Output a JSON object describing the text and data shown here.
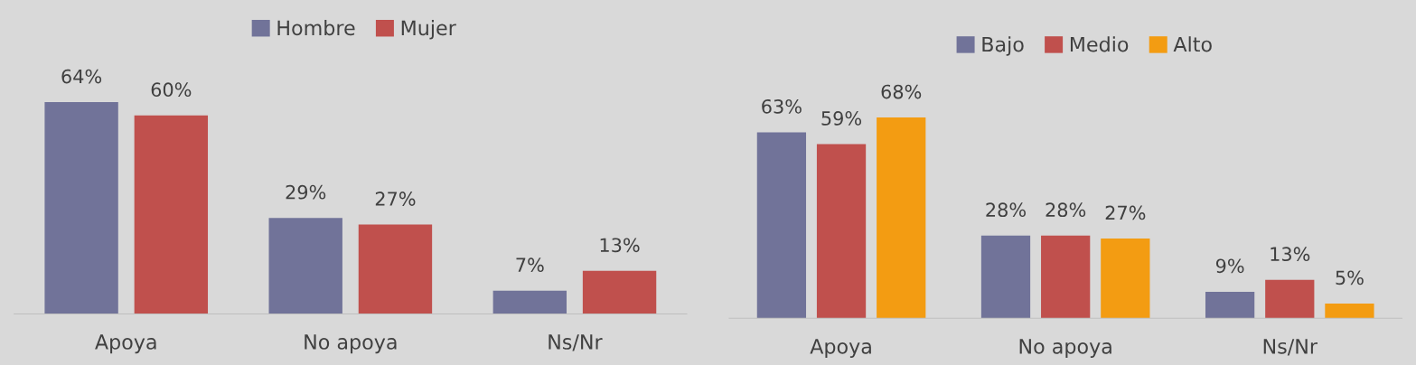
{
  "chart_data": [
    {
      "type": "bar",
      "categories": [
        "Apoya",
        "No apoya",
        "Ns/Nr"
      ],
      "legend": "top",
      "series": [
        {
          "name": "Hombre",
          "color": "#717399",
          "values": [
            64,
            29,
            7
          ],
          "value_labels": [
            "64%",
            "29%",
            "7%"
          ]
        },
        {
          "name": "Mujer",
          "color": "#c0504d",
          "values": [
            60,
            27,
            13
          ],
          "value_labels": [
            "60%",
            "27%",
            "13%"
          ]
        }
      ]
    },
    {
      "type": "bar",
      "categories": [
        "Apoya",
        "No apoya",
        "Ns/Nr"
      ],
      "legend": "top",
      "series": [
        {
          "name": "Bajo",
          "color": "#717399",
          "values": [
            63,
            28,
            9
          ],
          "value_labels": [
            "63%",
            "28%",
            "9%"
          ]
        },
        {
          "name": "Medio",
          "color": "#c0504d",
          "values": [
            59,
            28,
            13
          ],
          "value_labels": [
            "59%",
            "28%",
            "13%"
          ]
        },
        {
          "name": "Alto",
          "color": "#f39c12",
          "values": [
            68,
            27,
            5
          ],
          "value_labels": [
            "68%",
            "27%",
            "5%"
          ]
        }
      ]
    }
  ]
}
